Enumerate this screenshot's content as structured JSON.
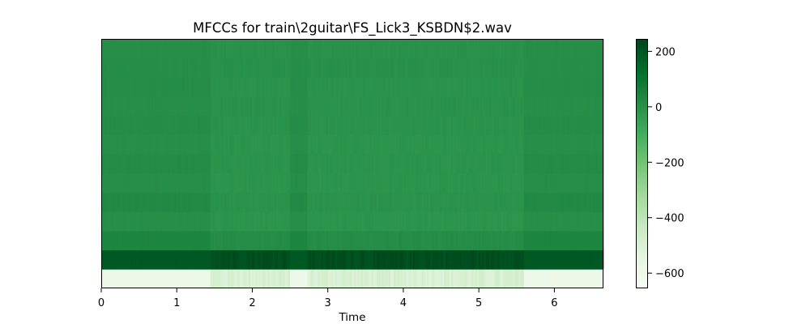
{
  "chart_data": {
    "type": "heatmap",
    "title": "MFCCs for train\\2guitar\\FS_Lick3_KSBDN$2.wav",
    "xlabel": "Time",
    "ylabel": "",
    "xlim": [
      0,
      6.65
    ],
    "x_ticks": [
      0,
      1,
      2,
      3,
      4,
      5,
      6
    ],
    "y_ticks_shown": false,
    "colormap": "Greens",
    "n_coefficients": 13,
    "n_frames": 290,
    "quiet_regions": [
      [
        0,
        1.45
      ],
      [
        2.5,
        2.72
      ],
      [
        5.6,
        6.65
      ]
    ],
    "coefficient_base_values": [
      -590,
      190,
      42,
      8,
      25,
      10,
      18,
      8,
      15,
      10,
      14,
      12,
      10
    ],
    "coefficient_active_offsets": [
      95,
      30,
      -28,
      -22,
      -32,
      -22,
      -28,
      -20,
      -22,
      -14,
      -20,
      -10,
      -12
    ],
    "colorbar": {
      "range": [
        -655,
        245
      ],
      "ticks": [
        200,
        0,
        -200,
        -400,
        -600
      ],
      "tick_labels": [
        "200",
        "0",
        "−200",
        "−400",
        "−600"
      ]
    }
  }
}
